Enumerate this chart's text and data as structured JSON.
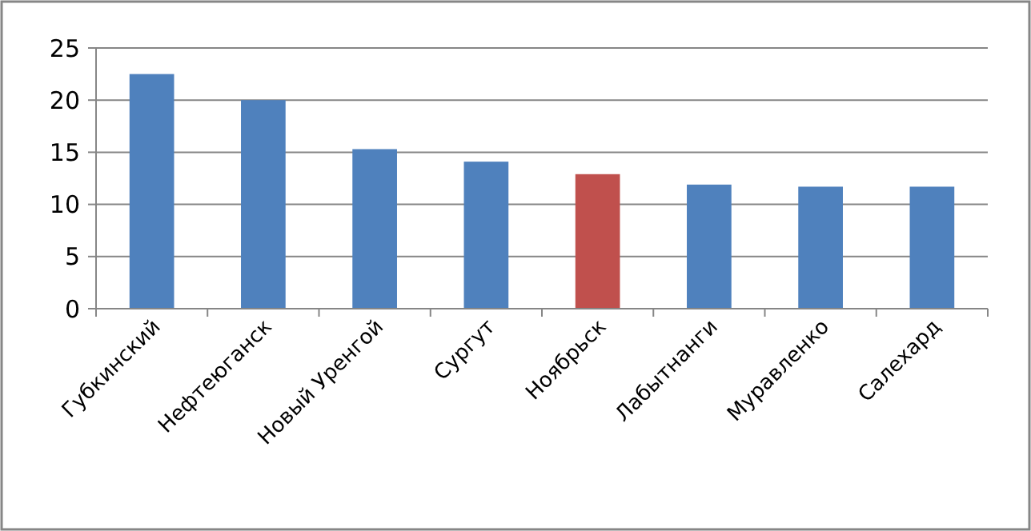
{
  "chart_data": {
    "type": "bar",
    "categories": [
      "Губкинский",
      "Нефтеюганск",
      "Новый Уренгой",
      "Сургут",
      "Ноябрьск",
      "Лабытнанги",
      "Муравленко",
      "Салехард"
    ],
    "values": [
      22.5,
      20.0,
      15.3,
      14.1,
      12.9,
      11.9,
      11.7,
      11.7
    ],
    "colors": [
      "#4f81bd",
      "#4f81bd",
      "#4f81bd",
      "#4f81bd",
      "#c0504d",
      "#4f81bd",
      "#4f81bd",
      "#4f81bd"
    ],
    "ylim": [
      0,
      25
    ],
    "yticks": [
      0,
      5,
      10,
      15,
      20,
      25
    ],
    "grid": "y"
  }
}
